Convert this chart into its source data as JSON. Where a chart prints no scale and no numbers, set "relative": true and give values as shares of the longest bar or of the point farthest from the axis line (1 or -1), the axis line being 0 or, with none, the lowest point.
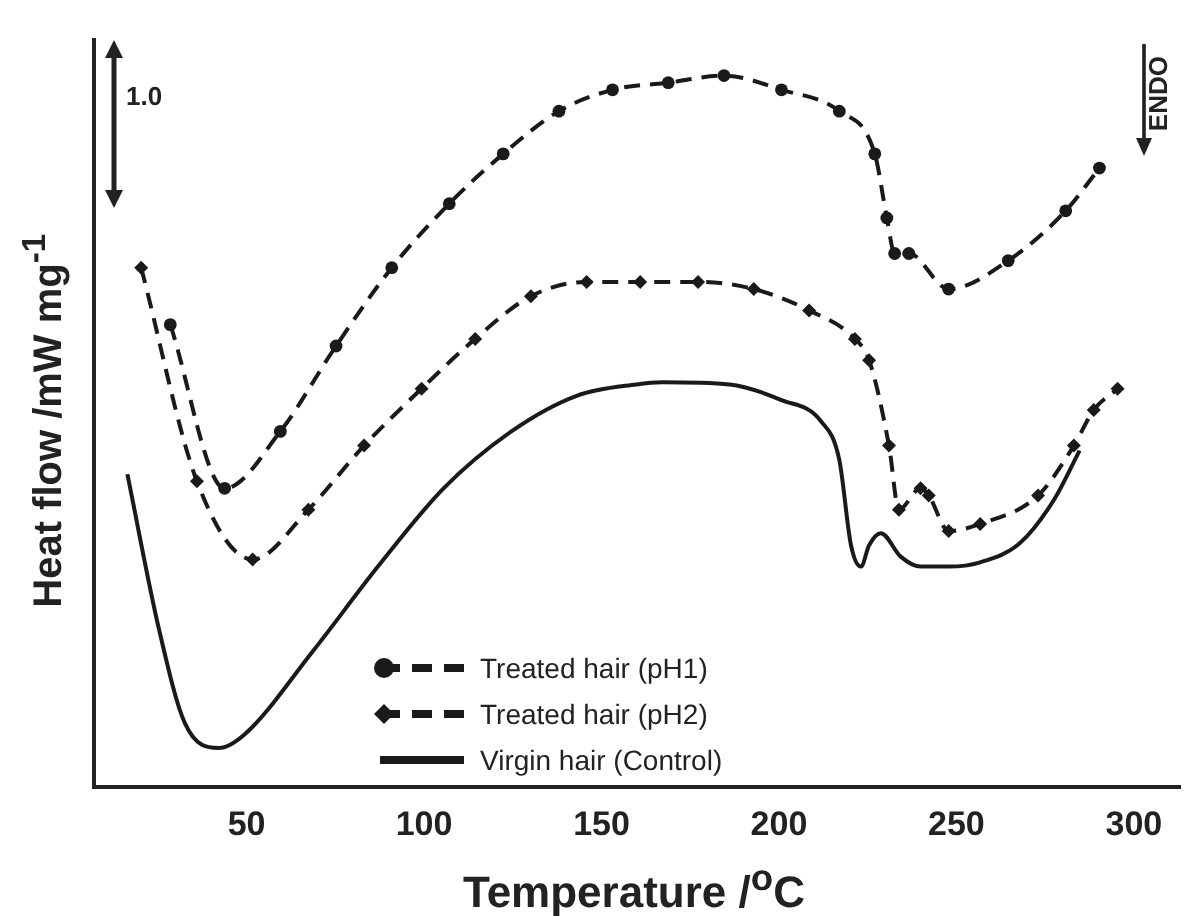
{
  "chart_data": {
    "type": "line",
    "relative": true,
    "xlabel": "Temperature /$^{o}$C",
    "ylabel": "Heat flow /mW mg$^{-1}$",
    "xlim": [
      7,
      313
    ],
    "xticks": [
      50,
      100,
      150,
      200,
      250,
      300
    ],
    "legend": "bottom",
    "grid": false,
    "annotations": [
      "1.0",
      "ENDO"
    ],
    "series": [
      {
        "name": "Treated hair (pH1)",
        "color": "#1a1a1a",
        "marker": "circle",
        "line_style": "dashed",
        "x": [
          28.5,
          43.8,
          59.5,
          75.2,
          90.9,
          107.1,
          122.3,
          138.0,
          153.1,
          168.8,
          184.5,
          200.7,
          217.0,
          227.0,
          230.4,
          232.6,
          236.6,
          247.8,
          264.6,
          280.8,
          290.3
        ],
        "values": [
          0.65,
          0.42,
          0.5,
          0.62,
          0.73,
          0.82,
          0.89,
          0.95,
          0.98,
          0.99,
          1.0,
          0.98,
          0.95,
          0.89,
          0.8,
          0.75,
          0.75,
          0.7,
          0.74,
          0.81,
          0.87
        ]
      },
      {
        "name": "Treated hair (pH2)",
        "color": "#1a1a1a",
        "marker": "diamond",
        "line_style": "dashed",
        "x": [
          20.3,
          36.0,
          51.7,
          67.4,
          83.1,
          99.3,
          114.4,
          130.1,
          145.8,
          160.9,
          177.2,
          192.9,
          208.5,
          221.4,
          225.4,
          231.0,
          233.8,
          239.9,
          242.2,
          247.8,
          256.7,
          273.0,
          283.1,
          288.7,
          295.4
        ],
        "values": [
          0.73,
          0.43,
          0.32,
          0.39,
          0.48,
          0.56,
          0.63,
          0.69,
          0.71,
          0.71,
          0.71,
          0.7,
          0.67,
          0.63,
          0.6,
          0.48,
          0.39,
          0.42,
          0.41,
          0.36,
          0.37,
          0.41,
          0.48,
          0.53,
          0.56
        ]
      },
      {
        "name": "Virgin hair (Control)",
        "color": "#1a1a1a",
        "marker": "none",
        "line_style": "solid",
        "x": [
          16.4,
          25.4,
          32.6,
          42.2,
          49.4,
          68.5,
          87.0,
          105.5,
          124.6,
          143.0,
          159.8,
          167.1,
          186.1,
          200.7,
          211.9,
          217.0,
          220.3,
          223.1,
          225.4,
          228.7,
          234.3,
          239.9,
          247.8,
          256.7,
          267.9,
          277.5,
          284.7
        ],
        "values": [
          0.44,
          0.22,
          0.09,
          0.055,
          0.074,
          0.19,
          0.31,
          0.42,
          0.5,
          0.55,
          0.566,
          0.569,
          0.566,
          0.544,
          0.514,
          0.46,
          0.34,
          0.31,
          0.34,
          0.357,
          0.324,
          0.31,
          0.31,
          0.316,
          0.343,
          0.404,
          0.473
        ]
      }
    ]
  }
}
